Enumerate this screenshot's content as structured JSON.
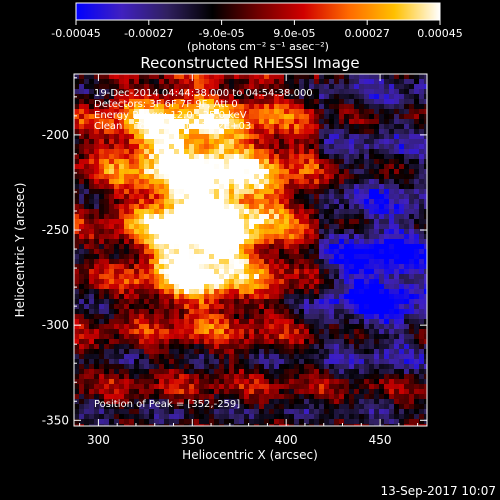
{
  "chart_data": {
    "type": "heatmap",
    "title": "Reconstructed RHESSI Image",
    "xlabel": "Heliocentric X (arcsec)",
    "ylabel": "Heliocentric Y (arcsec)",
    "xlim": [
      287,
      475
    ],
    "ylim": [
      -353,
      -168
    ],
    "x_ticks": [
      300,
      350,
      400,
      450
    ],
    "y_ticks": [
      -350,
      -300,
      -250,
      -200
    ],
    "colorbar": {
      "range": [
        -0.00045,
        0.00045
      ],
      "tick_labels": [
        "-0.00045",
        "-0.00027",
        "-9.0e-05",
        "9.0e-05",
        "0.00027",
        "0.00045"
      ],
      "unit_label": "(photons cm⁻² s⁻¹ asec⁻²)",
      "colormap": [
        "#0000ff",
        "#4020c0",
        "#302060",
        "#000000",
        "#700000",
        "#d00000",
        "#ff6a00",
        "#ffc000",
        "#ffffff"
      ]
    },
    "annotations": [
      "19-Dec-2014 04:44:38.000 to 04:54:38.000",
      "Detectors: 3F 6F 7F 9F, Att 0",
      "Energy Range: 12.0 - 25.0 keV",
      "Clean    Total counts: 2.62E+03"
    ],
    "peak_label": "Position of Peak = [352,-259]",
    "peak": [
      352,
      -259
    ],
    "timestamp": "13-Sep-2017 10:07"
  }
}
